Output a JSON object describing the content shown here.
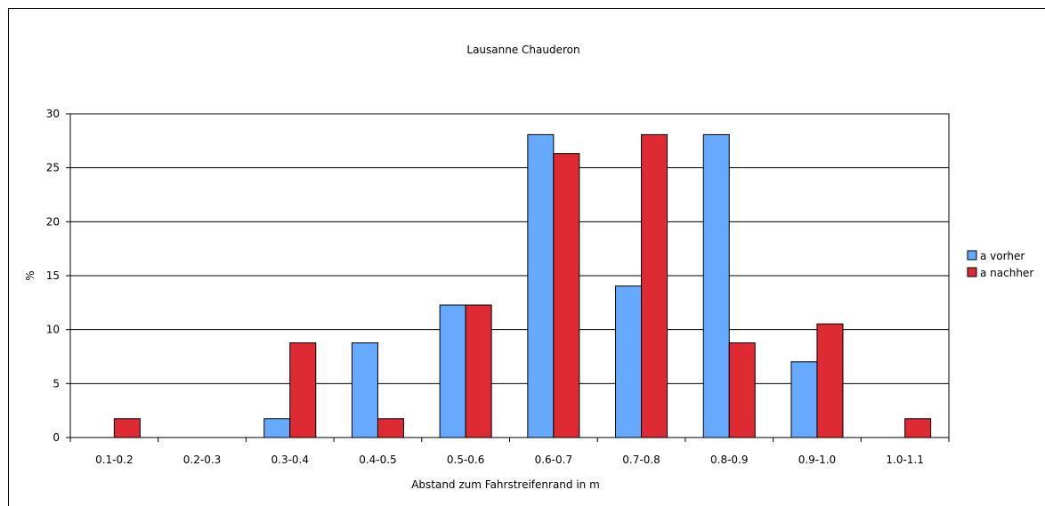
{
  "chart_data": {
    "type": "bar",
    "title": "Lausanne Chauderon",
    "xlabel": "Abstand zum Fahrstreifenrand in m",
    "ylabel": "%",
    "ylim": [
      0,
      30
    ],
    "yticks": [
      0,
      5,
      10,
      15,
      20,
      25,
      30
    ],
    "grid": true,
    "legend_position": "right",
    "categories": [
      "0.1-0.2",
      "0.2-0.3",
      "0.3-0.4",
      "0.4-0.5",
      "0.5-0.6",
      "0.6-0.7",
      "0.7-0.8",
      "0.8-0.9",
      "0.9-1.0",
      "1.0-1.1"
    ],
    "series": [
      {
        "name": "a vorher",
        "color": "#66aaff",
        "values": [
          0,
          0,
          1.75,
          8.77,
          12.28,
          28.07,
          14.04,
          28.07,
          7.02,
          0
        ]
      },
      {
        "name": "a nachher",
        "color": "#dd2a33",
        "values": [
          1.75,
          0,
          8.77,
          1.75,
          12.28,
          26.32,
          28.07,
          8.77,
          10.53,
          1.75
        ]
      }
    ]
  }
}
